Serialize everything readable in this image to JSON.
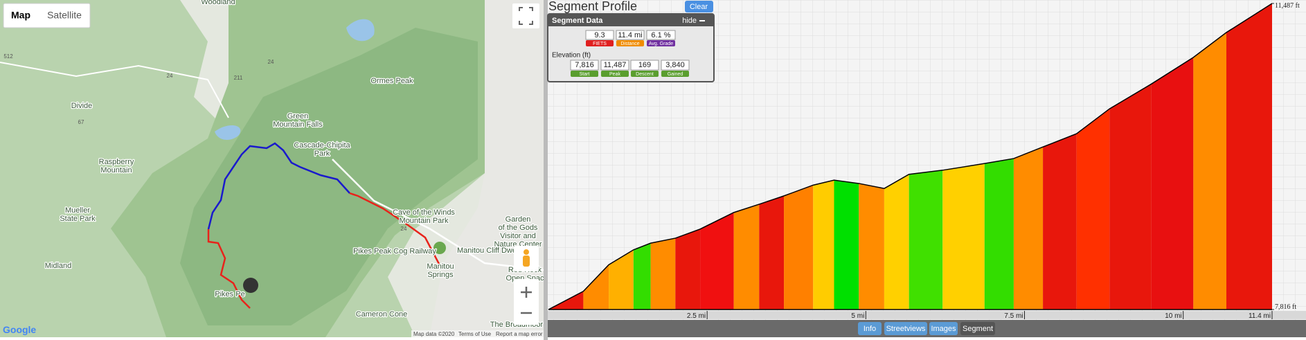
{
  "map": {
    "type_buttons": [
      "Map",
      "Satellite"
    ],
    "places": [
      [
        "Woodland"
      ],
      [
        "Divide"
      ],
      [
        "Green",
        "Mountain Falls"
      ],
      [
        "Cascade-Chipita",
        "Park"
      ],
      [
        "Ormes Peak"
      ],
      [
        "Raspberry",
        "Mountain"
      ],
      [
        "Mueller",
        "State Park"
      ],
      [
        "Midland"
      ],
      [
        "Pikes Pe"
      ],
      [
        "Cave of the Winds",
        "Mountain Park"
      ],
      [
        "Garden",
        "of the Gods",
        "Visitor and",
        "Nature Center"
      ],
      [
        "Manitou Cliff Dwe"
      ],
      [
        "Pikes Peak Cog Railway"
      ],
      [
        "Manitou",
        "Springs"
      ],
      [
        "Red Rock",
        "Open Spac"
      ],
      [
        "Cameron Cone"
      ],
      [
        "The Broadmoor"
      ]
    ],
    "roads": [
      "512",
      "24",
      "67",
      "211",
      "24",
      "24"
    ],
    "footer": {
      "logo": "Google",
      "data": "Map data ©2020",
      "terms": "Terms of Use",
      "report": "Report a map error"
    }
  },
  "segment_profile": {
    "title": "Segment Profile",
    "clear": "Clear",
    "panel": {
      "title": "Segment Data",
      "hide": "hide",
      "stats": [
        {
          "value": "9.3",
          "label": "FIETS"
        },
        {
          "value": "11.4 mi",
          "label": "Distance"
        },
        {
          "value": "6.1 %",
          "label": "Avg. Grade"
        }
      ],
      "elevation_title": "Elevation (ft)",
      "elevation": [
        {
          "value": "7,816",
          "label": "Start"
        },
        {
          "value": "11,487",
          "label": "Peak"
        },
        {
          "value": "169",
          "label": "Descent"
        },
        {
          "value": "3,840",
          "label": "Gained"
        }
      ]
    }
  },
  "chart_data": {
    "type": "area",
    "x": [
      0,
      0.55,
      0.95,
      1.34,
      1.61,
      2.0,
      2.39,
      2.92,
      3.32,
      3.71,
      4.17,
      4.5,
      4.89,
      5.29,
      5.68,
      6.21,
      6.87,
      7.33,
      7.79,
      8.32,
      8.84,
      9.5,
      10.16,
      10.68,
      11.4
    ],
    "y": [
      7816,
      8035,
      8353,
      8532,
      8612,
      8672,
      8781,
      8980,
      9079,
      9179,
      9308,
      9368,
      9328,
      9268,
      9438,
      9487,
      9567,
      9627,
      9766,
      9925,
      10224,
      10522,
      10840,
      11139,
      11487
    ],
    "strip_colors": [
      "#e8170c",
      "#ff8c00",
      "#ffb000",
      "#33dd00",
      "#ff8c00",
      "#e8170c",
      "#f01010",
      "#ff8c00",
      "#e8170c",
      "#ff8000",
      "#ffcc00",
      "#00e000",
      "#ff8c00",
      "#ffd000",
      "#40e000",
      "#ffd000",
      "#33dd00",
      "#ff8c00",
      "#e8170c",
      "#ff3000",
      "#e8170c",
      "#e81010",
      "#ff8c00",
      "#e8170c"
    ],
    "line_color": "#000000",
    "xlim": [
      0,
      11.4
    ],
    "ylim": [
      7816,
      11487
    ],
    "xticks": [
      {
        "value": 2.5,
        "label": "2.5 mi"
      },
      {
        "value": 5,
        "label": "5 mi"
      },
      {
        "value": 7.5,
        "label": "7.5 mi"
      },
      {
        "value": 10,
        "label": "10 mi"
      },
      {
        "value": 11.4,
        "label": "11.4 mi"
      }
    ],
    "yticks": [
      {
        "value": 7816,
        "label": "7,816 ft"
      },
      {
        "value": 11487,
        "label": "11,487 ft"
      }
    ]
  },
  "toolbar": {
    "buttons": [
      "Info",
      "Streetviews",
      "Images",
      "Segment"
    ]
  }
}
